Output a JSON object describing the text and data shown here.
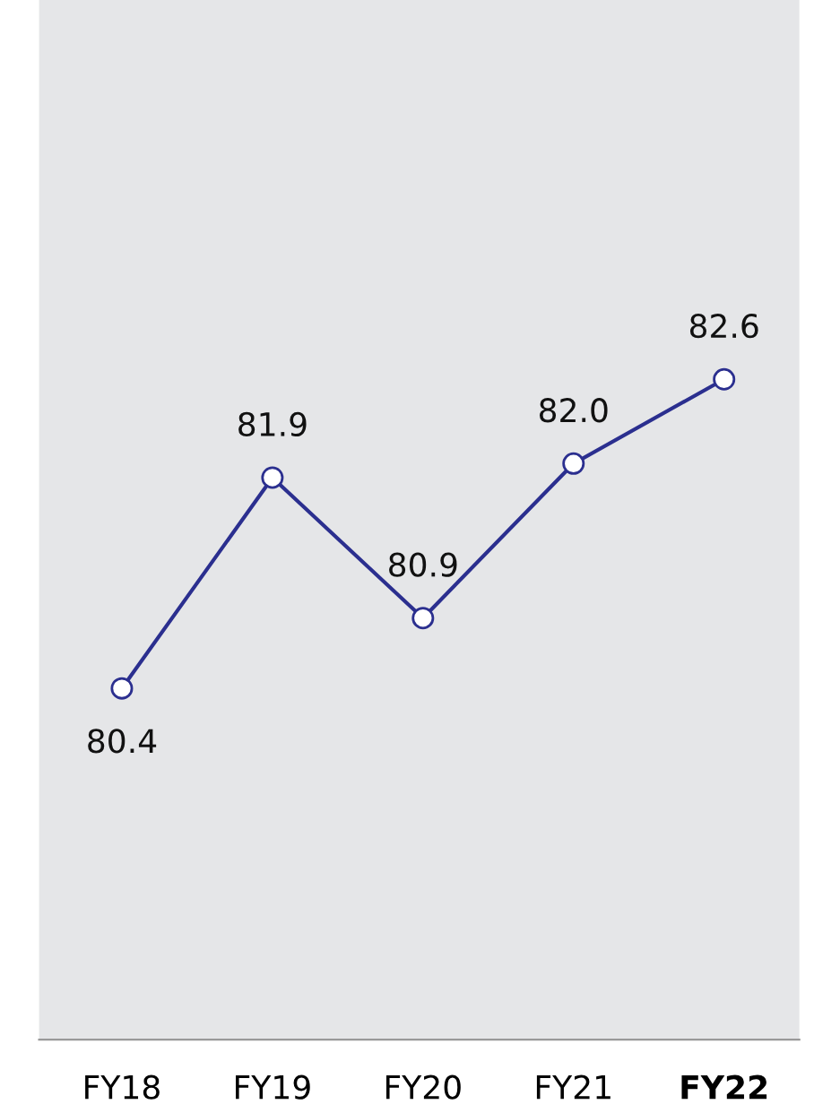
{
  "chart_data": {
    "type": "line",
    "categories": [
      "FY18",
      "FY19",
      "FY20",
      "FY21",
      "FY22"
    ],
    "series": [
      {
        "color": "#2b2f8f",
        "values": [
          80.4,
          81.9,
          80.9,
          82.0,
          82.6
        ],
        "value_labels": [
          "80.4",
          "81.9",
          "80.9",
          "82.0",
          "82.6"
        ]
      }
    ],
    "ylim": [
      77.9,
      85.3
    ],
    "marker": "circle",
    "line_style": "solid",
    "grid": false,
    "legend": false,
    "tick_labels": "x"
  }
}
